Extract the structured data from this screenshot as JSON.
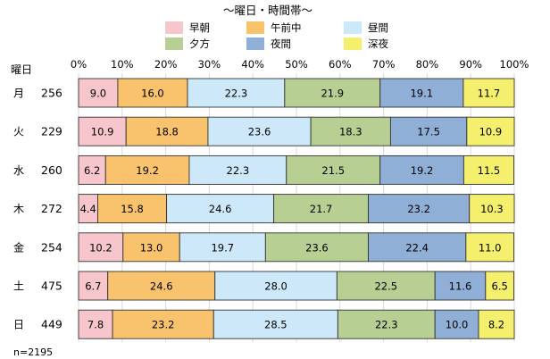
{
  "chart_data": {
    "type": "bar",
    "orientation": "horizontal",
    "stacked": "percent",
    "title": "〜曜日・時間帯〜",
    "row_header": "曜日",
    "categories": [
      "月",
      "火",
      "水",
      "木",
      "金",
      "土",
      "日"
    ],
    "counts": [
      "256",
      "229",
      "260",
      "272",
      "254",
      "475",
      "449"
    ],
    "xlim": [
      0,
      100
    ],
    "x_ticks": [
      "0%",
      "10%",
      "20%",
      "30%",
      "40%",
      "50%",
      "60%",
      "70%",
      "80%",
      "90%",
      "100%"
    ],
    "grid": true,
    "legend_position": "top",
    "series": [
      {
        "name": "早朝",
        "color": "#f7c6cc",
        "values": [
          9.0,
          10.9,
          6.2,
          4.4,
          10.2,
          6.7,
          7.8
        ]
      },
      {
        "name": "午前中",
        "color": "#f8c36c",
        "values": [
          16.0,
          18.8,
          19.2,
          15.8,
          13.0,
          24.6,
          23.2
        ]
      },
      {
        "name": "昼間",
        "color": "#cde8f8",
        "values": [
          22.3,
          23.6,
          22.3,
          24.6,
          19.7,
          28.0,
          28.5
        ]
      },
      {
        "name": "夕方",
        "color": "#b7cf92",
        "values": [
          21.9,
          18.3,
          21.5,
          21.7,
          23.6,
          22.5,
          22.3
        ]
      },
      {
        "name": "夜間",
        "color": "#8fafd6",
        "values": [
          19.1,
          17.5,
          19.2,
          23.2,
          22.4,
          11.6,
          10.0
        ]
      },
      {
        "name": "深夜",
        "color": "#f4ef6c",
        "values": [
          11.7,
          10.9,
          11.5,
          10.3,
          11.0,
          6.5,
          8.2
        ]
      }
    ],
    "note": "n=2195"
  }
}
